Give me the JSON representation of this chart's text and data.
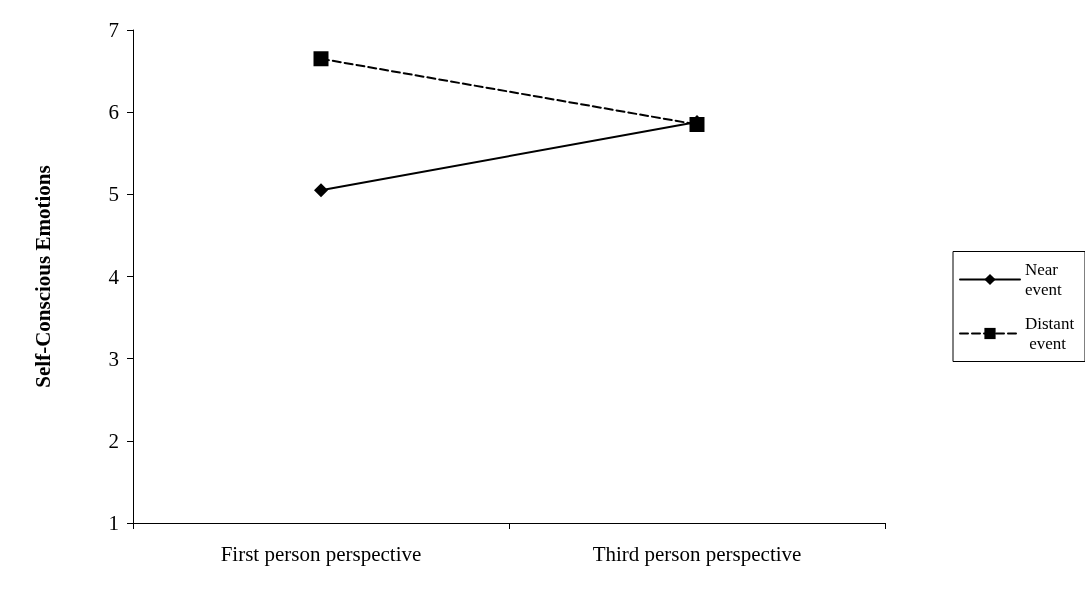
{
  "chart_data": {
    "type": "line",
    "ylabel": "Self-Conscious Emotions",
    "categories": [
      "First person perspective",
      "Third person perspective"
    ],
    "series": [
      {
        "name": "Near event",
        "color": "#000000",
        "values": [
          5.05,
          5.88
        ],
        "marker": "diamond",
        "line_style": "solid"
      },
      {
        "name": "Distant event",
        "color": "#000000",
        "values": [
          6.65,
          5.85
        ],
        "marker": "square",
        "line_style": "dashed"
      }
    ],
    "ylim": [
      1,
      7
    ],
    "yticks": [
      1,
      2,
      3,
      4,
      5,
      6,
      7
    ],
    "grid": false,
    "legend": "right"
  }
}
